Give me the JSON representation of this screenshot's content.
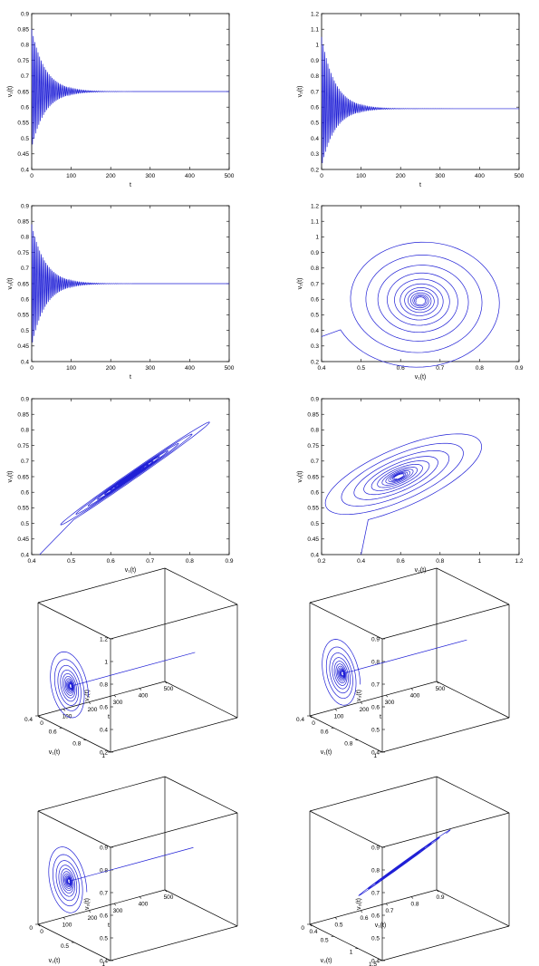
{
  "colors": {
    "series": "#1f1fd6",
    "axis": "#000000"
  },
  "chart_data": [
    {
      "type": "line",
      "subtype": "time-series",
      "xlabel": "t",
      "ylabel": "v₁(t)",
      "xlim": [
        0,
        500
      ],
      "ylim": [
        0.4,
        0.9
      ],
      "xticks": [
        "0",
        "100",
        "200",
        "300",
        "400",
        "500"
      ],
      "yticks": [
        "0.4",
        "0.45",
        "0.5",
        "0.55",
        "0.6",
        "0.65",
        "0.7",
        "0.75",
        "0.8",
        "0.85",
        "0.9"
      ],
      "series": [
        {
          "equilibrium": 0.65,
          "initial": 0.85,
          "min_initial": 0.47,
          "period": 4,
          "decay_time": 110
        }
      ]
    },
    {
      "type": "line",
      "subtype": "time-series",
      "xlabel": "t",
      "ylabel": "v₂(t)",
      "xlim": [
        0,
        500
      ],
      "ylim": [
        0.2,
        1.2
      ],
      "xticks": [
        "0",
        "100",
        "200",
        "300",
        "400",
        "500"
      ],
      "yticks": [
        "0.2",
        "0.3",
        "0.4",
        "0.5",
        "0.6",
        "0.7",
        "0.8",
        "0.9",
        "1",
        "1.1",
        "1.2"
      ],
      "series": [
        {
          "equilibrium": 0.59,
          "initial": 1.05,
          "min_initial": 0.22,
          "period": 4,
          "decay_time": 110
        }
      ]
    },
    {
      "type": "line",
      "subtype": "time-series",
      "xlabel": "t",
      "ylabel": "v₃(t)",
      "xlim": [
        0,
        500
      ],
      "ylim": [
        0.4,
        0.9
      ],
      "xticks": [
        "0",
        "100",
        "200",
        "300",
        "400",
        "500"
      ],
      "yticks": [
        "0.4",
        "0.45",
        "0.5",
        "0.55",
        "0.6",
        "0.65",
        "0.7",
        "0.75",
        "0.8",
        "0.85",
        "0.9"
      ],
      "series": [
        {
          "equilibrium": 0.65,
          "initial": 0.84,
          "min_initial": 0.45,
          "period": 4,
          "decay_time": 110
        }
      ]
    },
    {
      "type": "line",
      "subtype": "phase-portrait",
      "xlabel": "v₁(t)",
      "ylabel": "v₂(t)",
      "xlim": [
        0.4,
        0.9
      ],
      "ylim": [
        0.2,
        1.2
      ],
      "xticks": [
        "0.4",
        "0.5",
        "0.6",
        "0.7",
        "0.8",
        "0.9"
      ],
      "yticks": [
        "0.2",
        "0.3",
        "0.4",
        "0.5",
        "0.6",
        "0.7",
        "0.8",
        "0.9",
        "1",
        "1.1",
        "1.2"
      ],
      "series": [
        {
          "start": [
            0.4,
            0.36
          ],
          "center": [
            0.65,
            0.59
          ],
          "extent": [
            0.2,
            0.4
          ],
          "tilt": 0.0,
          "turns": 12
        }
      ]
    },
    {
      "type": "line",
      "subtype": "phase-portrait",
      "xlabel": "v₁(t)",
      "ylabel": "v₃(t)",
      "xlim": [
        0.4,
        0.9
      ],
      "ylim": [
        0.4,
        0.9
      ],
      "xticks": [
        "0.4",
        "0.5",
        "0.6",
        "0.7",
        "0.8",
        "0.9"
      ],
      "yticks": [
        "0.4",
        "0.45",
        "0.5",
        "0.55",
        "0.6",
        "0.65",
        "0.7",
        "0.75",
        "0.8",
        "0.85",
        "0.9"
      ],
      "series": [
        {
          "start": [
            0.42,
            0.4
          ],
          "center": [
            0.65,
            0.65
          ],
          "extent": [
            0.2,
            0.19
          ],
          "tilt": 0.92,
          "turns": 12
        }
      ]
    },
    {
      "type": "line",
      "subtype": "phase-portrait",
      "xlabel": "v₂(t)",
      "ylabel": "v₃(t)",
      "xlim": [
        0.2,
        1.2
      ],
      "ylim": [
        0.4,
        0.9
      ],
      "xticks": [
        "0.2",
        "0.4",
        "0.6",
        "0.8",
        "1",
        "1.2"
      ],
      "yticks": [
        "0.4",
        "0.45",
        "0.5",
        "0.55",
        "0.6",
        "0.65",
        "0.7",
        "0.75",
        "0.8",
        "0.85",
        "0.9"
      ],
      "series": [
        {
          "start": [
            0.4,
            0.4
          ],
          "center": [
            0.59,
            0.65
          ],
          "extent": [
            0.42,
            0.2
          ],
          "tilt": 0.5,
          "turns": 12
        }
      ]
    },
    {
      "type": "line",
      "subtype": "3d-trajectory",
      "xlabel": "t",
      "ylabel": "v₁(t)",
      "zlabel": "v₂(t)",
      "xlim": [
        0,
        500
      ],
      "ylim": [
        0.4,
        1
      ],
      "zlim": [
        0.2,
        1.2
      ],
      "xticks": [
        "0",
        "100",
        "200",
        "300",
        "400",
        "500"
      ],
      "yticks": [
        "0.4",
        "0.6",
        "0.8",
        "1"
      ],
      "zticks": [
        "0.2",
        "0.4",
        "0.6",
        "0.8",
        "1",
        "1.2"
      ],
      "series": [
        {
          "eq": [
            0.65,
            0.59
          ]
        }
      ]
    },
    {
      "type": "line",
      "subtype": "3d-trajectory",
      "xlabel": "t",
      "ylabel": "v₁(t)",
      "zlabel": "v₃(t)",
      "xlim": [
        0,
        500
      ],
      "ylim": [
        0.4,
        1
      ],
      "zlim": [
        0.4,
        0.9
      ],
      "xticks": [
        "0",
        "100",
        "200",
        "300",
        "400",
        "500"
      ],
      "yticks": [
        "0.4",
        "0.6",
        "0.8",
        "1"
      ],
      "zticks": [
        "0.4",
        "0.5",
        "0.6",
        "0.7",
        "0.8",
        "0.9"
      ],
      "series": [
        {
          "eq": [
            0.65,
            0.65
          ]
        }
      ]
    },
    {
      "type": "line",
      "subtype": "3d-trajectory",
      "xlabel": "t",
      "ylabel": "v₂(t)",
      "zlabel": "v₃(t)",
      "xlim": [
        0,
        500
      ],
      "ylim": [
        0,
        1.5
      ],
      "zlim": [
        0.4,
        0.9
      ],
      "xticks": [
        "0",
        "100",
        "200",
        "300",
        "400",
        "500"
      ],
      "yticks": [
        "0",
        "0.5",
        "1"
      ],
      "zticks": [
        "0.4",
        "0.5",
        "0.6",
        "0.7",
        "0.8",
        "0.9"
      ],
      "series": [
        {
          "eq": [
            0.59,
            0.65
          ]
        }
      ]
    },
    {
      "type": "line",
      "subtype": "3d-phase",
      "xlabel": "v₁(t)",
      "ylabel": "v₂(t)",
      "zlabel": "v₃(t)",
      "xlim": [
        0.4,
        0.9
      ],
      "ylim": [
        0,
        1.5
      ],
      "zlim": [
        0.4,
        0.9
      ],
      "xticks": [
        "0.4",
        "0.5",
        "0.6",
        "0.7",
        "0.8",
        "0.9"
      ],
      "yticks": [
        "0",
        "0.5",
        "1",
        "1.5"
      ],
      "zticks": [
        "0.4",
        "0.5",
        "0.6",
        "0.7",
        "0.8",
        "0.9"
      ],
      "series": [
        {
          "eq": [
            0.65,
            0.59,
            0.65
          ]
        }
      ]
    }
  ]
}
